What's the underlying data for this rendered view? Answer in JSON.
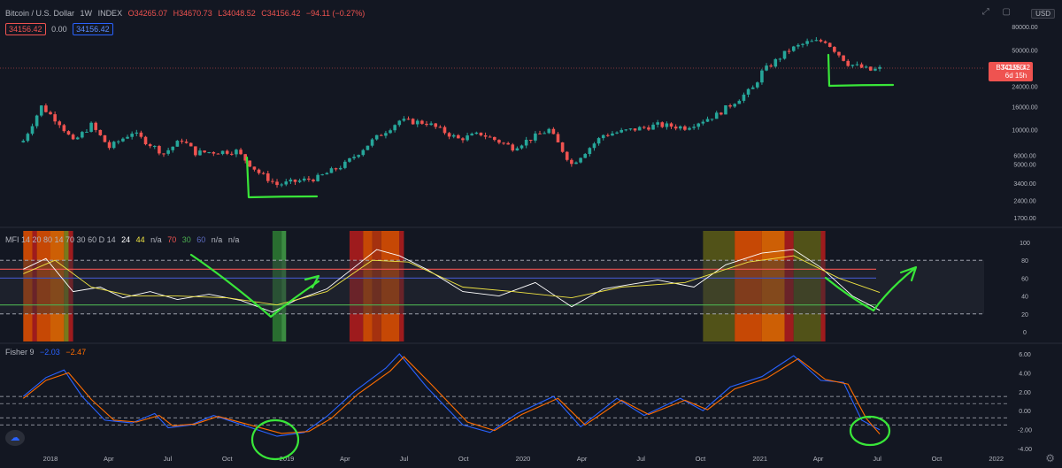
{
  "header": {
    "title": "Bitcoin / U.S. Dollar",
    "interval": "1W",
    "source": "INDEX",
    "ohlc": {
      "o": "O34265.07",
      "h": "H34670.73",
      "l": "L34048.52",
      "c": "C34156.42",
      "change": "−94.11 (−0.27%)"
    },
    "bid": "34156.42",
    "spread": "0.00",
    "ask": "34156.42",
    "currency": "USD"
  },
  "last_price": {
    "label": "BTCUSD",
    "value": "34156.42",
    "countdown": "6d 15h"
  },
  "mfi": {
    "legend_prefix": "MFI 14 20 80 14 70 30 60 D 14",
    "vals": [
      {
        "text": "24",
        "color": "#ffffff"
      },
      {
        "text": "44",
        "color": "#f0e442"
      },
      {
        "text": "n/a",
        "color": "#b2b5be"
      },
      {
        "text": "70",
        "color": "#ef5350"
      },
      {
        "text": "30",
        "color": "#4caf50"
      },
      {
        "text": "60",
        "color": "#3f51b5"
      },
      {
        "text": "n/a",
        "color": "#b2b5be"
      },
      {
        "text": "n/a",
        "color": "#b2b5be"
      }
    ]
  },
  "fisher": {
    "legend": "Fisher 9",
    "v1": "−2.03",
    "v2": "−2.47"
  },
  "colors": {
    "bg": "#131722",
    "up": "#26a69a",
    "down": "#ef5350",
    "annot": "#39e639",
    "fisher1": "#2962ff",
    "fisher2": "#ff6d00"
  },
  "x_labels": [
    "2018",
    "Apr",
    "Jul",
    "Oct",
    "2019",
    "Apr",
    "Jul",
    "Oct",
    "2020",
    "Apr",
    "Jul",
    "Oct",
    "2021",
    "Apr",
    "Jul",
    "Oct",
    "2022"
  ],
  "chart_data": [
    {
      "type": "candlestick",
      "title": "Bitcoin / U.S. Dollar",
      "scale": "log",
      "y_ticks": [
        "80000.00",
        "50000.00",
        "24000.00",
        "16000.00",
        "10000.00",
        "6000.00",
        "5000.00",
        "3400.00",
        "2400.00",
        "1700.00"
      ],
      "close_path": [
        [
          "2017-11-20",
          8000
        ],
        [
          "2017-12-18",
          16000
        ],
        [
          "2018-01-15",
          11500
        ],
        [
          "2018-02-05",
          7800
        ],
        [
          "2018-03-05",
          11000
        ],
        [
          "2018-04-02",
          7000
        ],
        [
          "2018-05-07",
          9500
        ],
        [
          "2018-06-25",
          6200
        ],
        [
          "2018-07-23",
          8200
        ],
        [
          "2018-08-13",
          6300
        ],
        [
          "2018-10-15",
          6500
        ],
        [
          "2018-11-19",
          4200
        ],
        [
          "2018-12-17",
          3300
        ],
        [
          "2019-02-18",
          3800
        ],
        [
          "2019-04-01",
          5000
        ],
        [
          "2019-05-13",
          8000
        ],
        [
          "2019-06-24",
          12000
        ],
        [
          "2019-08-05",
          11500
        ],
        [
          "2019-09-23",
          8300
        ],
        [
          "2019-10-28",
          9200
        ],
        [
          "2019-12-16",
          7000
        ],
        [
          "2020-02-10",
          10000
        ],
        [
          "2020-03-16",
          5000
        ],
        [
          "2020-05-04",
          9000
        ],
        [
          "2020-07-27",
          11000
        ],
        [
          "2020-09-07",
          10500
        ],
        [
          "2020-10-26",
          13500
        ],
        [
          "2020-12-21",
          23000
        ],
        [
          "2021-01-04",
          32000
        ],
        [
          "2021-02-15",
          50000
        ],
        [
          "2021-03-15",
          58000
        ],
        [
          "2021-04-12",
          60000
        ],
        [
          "2021-05-17",
          38000
        ],
        [
          "2021-06-21",
          33000
        ],
        [
          "2021-07-05",
          34156.42
        ]
      ]
    },
    {
      "type": "line",
      "title": "MFI",
      "ylim": [
        0,
        100
      ],
      "y_ticks": [
        "100",
        "80",
        "60",
        "40",
        "20",
        "0"
      ],
      "bands": {
        "upper": 80,
        "lower": 20,
        "overbought": 70,
        "oversold": 30,
        "mid": 60
      },
      "series": [
        {
          "name": "MFI",
          "color": "#ffffff",
          "points": [
            [
              "2017-11-20",
              70
            ],
            [
              "2017-12-25",
              82
            ],
            [
              "2018-02-05",
              45
            ],
            [
              "2018-03-19",
              50
            ],
            [
              "2018-04-23",
              38
            ],
            [
              "2018-06-04",
              45
            ],
            [
              "2018-07-16",
              36
            ],
            [
              "2018-09-03",
              42
            ],
            [
              "2018-10-22",
              35
            ],
            [
              "2018-12-10",
              22
            ],
            [
              "2019-01-14",
              35
            ],
            [
              "2019-03-04",
              48
            ],
            [
              "2019-04-15",
              72
            ],
            [
              "2019-05-20",
              92
            ],
            [
              "2019-06-24",
              85
            ],
            [
              "2019-08-05",
              70
            ],
            [
              "2019-09-30",
              45
            ],
            [
              "2019-11-25",
              40
            ],
            [
              "2020-01-20",
              55
            ],
            [
              "2020-03-16",
              28
            ],
            [
              "2020-05-04",
              48
            ],
            [
              "2020-07-27",
              58
            ],
            [
              "2020-09-21",
              50
            ],
            [
              "2020-11-09",
              75
            ],
            [
              "2021-01-04",
              88
            ],
            [
              "2021-02-22",
              92
            ],
            [
              "2021-04-05",
              72
            ],
            [
              "2021-05-24",
              40
            ],
            [
              "2021-07-05",
              24
            ]
          ]
        },
        {
          "name": "MFI signal",
          "color": "#f0e442",
          "points": [
            [
              "2017-11-20",
              65
            ],
            [
              "2018-01-08",
              80
            ],
            [
              "2018-03-05",
              50
            ],
            [
              "2018-05-07",
              40
            ],
            [
              "2018-07-16",
              40
            ],
            [
              "2018-10-01",
              38
            ],
            [
              "2018-12-17",
              30
            ],
            [
              "2019-03-04",
              45
            ],
            [
              "2019-05-13",
              80
            ],
            [
              "2019-07-08",
              78
            ],
            [
              "2019-09-30",
              50
            ],
            [
              "2019-12-16",
              45
            ],
            [
              "2020-03-16",
              38
            ],
            [
              "2020-06-01",
              50
            ],
            [
              "2020-09-07",
              55
            ],
            [
              "2020-12-14",
              78
            ],
            [
              "2021-02-22",
              85
            ],
            [
              "2021-05-03",
              60
            ],
            [
              "2021-07-05",
              44
            ]
          ]
        }
      ]
    },
    {
      "type": "line",
      "title": "Fisher 9",
      "ylim": [
        -4,
        6
      ],
      "y_ticks": [
        "6.00",
        "4.00",
        "2.00",
        "0.00",
        "-2.00",
        "-4.00"
      ],
      "levels": [
        1.5,
        0.75,
        -0.75,
        -1.5
      ],
      "series": [
        {
          "name": "Fisher",
          "color": "#2962ff",
          "points": [
            [
              "2017-11-20",
              1.5
            ],
            [
              "2017-12-25",
              3.5
            ],
            [
              "2018-01-22",
              4.3
            ],
            [
              "2018-02-19",
              1.5
            ],
            [
              "2018-03-26",
              -1.0
            ],
            [
              "2018-05-07",
              -1.3
            ],
            [
              "2018-06-11",
              -0.3
            ],
            [
              "2018-07-02",
              -1.8
            ],
            [
              "2018-08-06",
              -1.5
            ],
            [
              "2018-09-10",
              -0.5
            ],
            [
              "2018-10-29",
              -1.6
            ],
            [
              "2018-12-17",
              -2.7
            ],
            [
              "2019-01-28",
              -2.3
            ],
            [
              "2019-03-04",
              -0.6
            ],
            [
              "2019-04-15",
              2.0
            ],
            [
              "2019-06-03",
              4.5
            ],
            [
              "2019-06-24",
              6.0
            ],
            [
              "2019-08-05",
              2.5
            ],
            [
              "2019-09-30",
              -1.5
            ],
            [
              "2019-11-11",
              -2.3
            ],
            [
              "2019-12-23",
              -0.3
            ],
            [
              "2020-02-17",
              1.5
            ],
            [
              "2020-03-30",
              -1.7
            ],
            [
              "2020-05-25",
              1.3
            ],
            [
              "2020-07-06",
              -0.5
            ],
            [
              "2020-08-31",
              1.3
            ],
            [
              "2020-10-05",
              0.0
            ],
            [
              "2020-11-16",
              2.5
            ],
            [
              "2021-01-04",
              3.6
            ],
            [
              "2021-02-22",
              5.8
            ],
            [
              "2021-04-05",
              3.2
            ],
            [
              "2021-05-10",
              3.0
            ],
            [
              "2021-06-07",
              -1.0
            ],
            [
              "2021-07-05",
              -2.03
            ]
          ]
        },
        {
          "name": "Trigger",
          "color": "#ff6d00",
          "points": [
            [
              "2017-11-20",
              1.3
            ],
            [
              "2017-12-25",
              3.2
            ],
            [
              "2018-01-29",
              4.0
            ],
            [
              "2018-03-05",
              1.2
            ],
            [
              "2018-04-09",
              -1.0
            ],
            [
              "2018-05-14",
              -1.2
            ],
            [
              "2018-06-18",
              -0.5
            ],
            [
              "2018-07-09",
              -1.6
            ],
            [
              "2018-08-13",
              -1.4
            ],
            [
              "2018-09-17",
              -0.6
            ],
            [
              "2018-11-05",
              -1.5
            ],
            [
              "2018-12-24",
              -2.4
            ],
            [
              "2019-02-04",
              -2.2
            ],
            [
              "2019-03-11",
              -0.8
            ],
            [
              "2019-04-22",
              1.8
            ],
            [
              "2019-06-10",
              4.2
            ],
            [
              "2019-07-01",
              5.7
            ],
            [
              "2019-08-12",
              2.8
            ],
            [
              "2019-10-07",
              -1.2
            ],
            [
              "2019-11-18",
              -2.1
            ],
            [
              "2019-12-30",
              -0.4
            ],
            [
              "2020-02-24",
              1.3
            ],
            [
              "2020-04-06",
              -1.5
            ],
            [
              "2020-06-01",
              1.1
            ],
            [
              "2020-07-13",
              -0.4
            ],
            [
              "2020-09-07",
              1.1
            ],
            [
              "2020-10-12",
              0.1
            ],
            [
              "2020-11-23",
              2.3
            ],
            [
              "2021-01-11",
              3.4
            ],
            [
              "2021-03-01",
              5.5
            ],
            [
              "2021-04-12",
              3.3
            ],
            [
              "2021-05-17",
              2.8
            ],
            [
              "2021-06-14",
              -0.8
            ],
            [
              "2021-07-05",
              -2.47
            ]
          ]
        }
      ]
    }
  ]
}
